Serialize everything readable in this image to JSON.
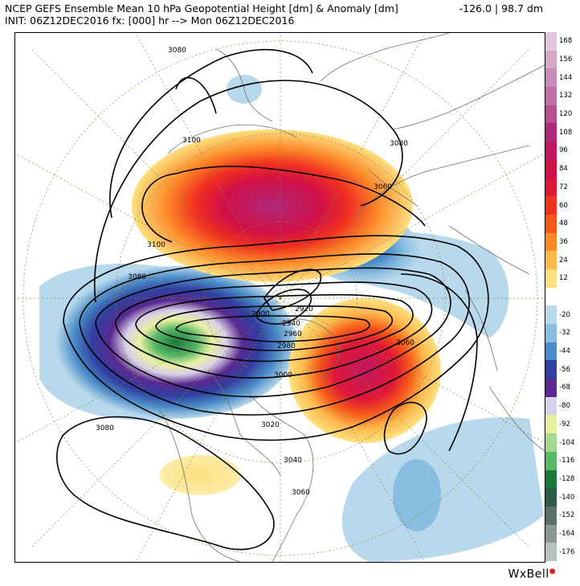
{
  "header": {
    "title": "NCEP GEFS Ensemble Mean 10 hPa Geopotential Height [dm] & Anomaly [dm]",
    "init": "INIT: 06Z12DEC2016 fx: [000] hr --> Mon 06Z12DEC2016",
    "range": "-126.0 | 98.7 dm"
  },
  "colorbar": {
    "levels": [
      {
        "label": "168",
        "color": "#e0c8dc"
      },
      {
        "label": "156",
        "color": "#d5a8c8"
      },
      {
        "label": "144",
        "color": "#c98cb8"
      },
      {
        "label": "132",
        "color": "#c070a8"
      },
      {
        "label": "120",
        "color": "#b85090"
      },
      {
        "label": "108",
        "color": "#b02878"
      },
      {
        "label": "96",
        "color": "#c01860"
      },
      {
        "label": "84",
        "color": "#d01048"
      },
      {
        "label": "72",
        "color": "#e01838"
      },
      {
        "label": "60",
        "color": "#f03020"
      },
      {
        "label": "48",
        "color": "#f85818"
      },
      {
        "label": "36",
        "color": "#fc8828"
      },
      {
        "label": "24",
        "color": "#fdb84c"
      },
      {
        "label": "12",
        "color": "#fde080"
      },
      {
        "label": "",
        "color": "#ffffff"
      },
      {
        "label": "-20",
        "color": "#b8d8ec"
      },
      {
        "label": "-32",
        "color": "#88bce0"
      },
      {
        "label": "-44",
        "color": "#4a8cc8"
      },
      {
        "label": "-56",
        "color": "#3040a0"
      },
      {
        "label": "-68",
        "color": "#5a2890"
      },
      {
        "label": "-80",
        "color": "#d8d0e8"
      },
      {
        "label": "-92",
        "color": "#e8f0a0"
      },
      {
        "label": "-104",
        "color": "#a8d890"
      },
      {
        "label": "-116",
        "color": "#58b868"
      },
      {
        "label": "-128",
        "color": "#1a7838"
      },
      {
        "label": "-140",
        "color": "#2e5a48"
      },
      {
        "label": "-152",
        "color": "#587068"
      },
      {
        "label": "-164",
        "color": "#8a9890"
      },
      {
        "label": "-176",
        "color": "#b8c0bc"
      }
    ]
  },
  "contour_labels": [
    "3080",
    "3100",
    "3080",
    "3060",
    "3100",
    "3080",
    "2900",
    "2920",
    "2940",
    "2960",
    "2980",
    "3000",
    "3060",
    "3020",
    "3040",
    "3060",
    "3080"
  ],
  "brand": "WxBell"
}
